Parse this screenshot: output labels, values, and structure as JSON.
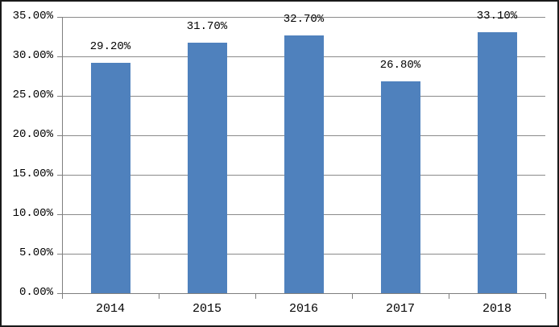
{
  "chart": {
    "background_color": "#FFFFFF",
    "frame_border_color": "#1A1A1A",
    "bar_color": "#4F81BD",
    "gridline_color": "#8A8A8A",
    "axis_color": "#7F7F7F",
    "text_color": "#000000"
  },
  "chart_data": {
    "type": "bar",
    "title": "",
    "xlabel": "",
    "ylabel": "",
    "categories": [
      "2014",
      "2015",
      "2016",
      "2017",
      "2018"
    ],
    "values": [
      29.2,
      31.7,
      32.7,
      26.8,
      33.1
    ],
    "data_labels": [
      "29.20%",
      "31.70%",
      "32.70%",
      "26.80%",
      "33.10%"
    ],
    "y_tick_labels": [
      "0.00%",
      "5.00%",
      "10.00%",
      "15.00%",
      "20.00%",
      "25.00%",
      "30.00%",
      "35.00%"
    ],
    "ylim": [
      0,
      35
    ],
    "y_step": 5,
    "grid": true,
    "legend_position": "none"
  }
}
